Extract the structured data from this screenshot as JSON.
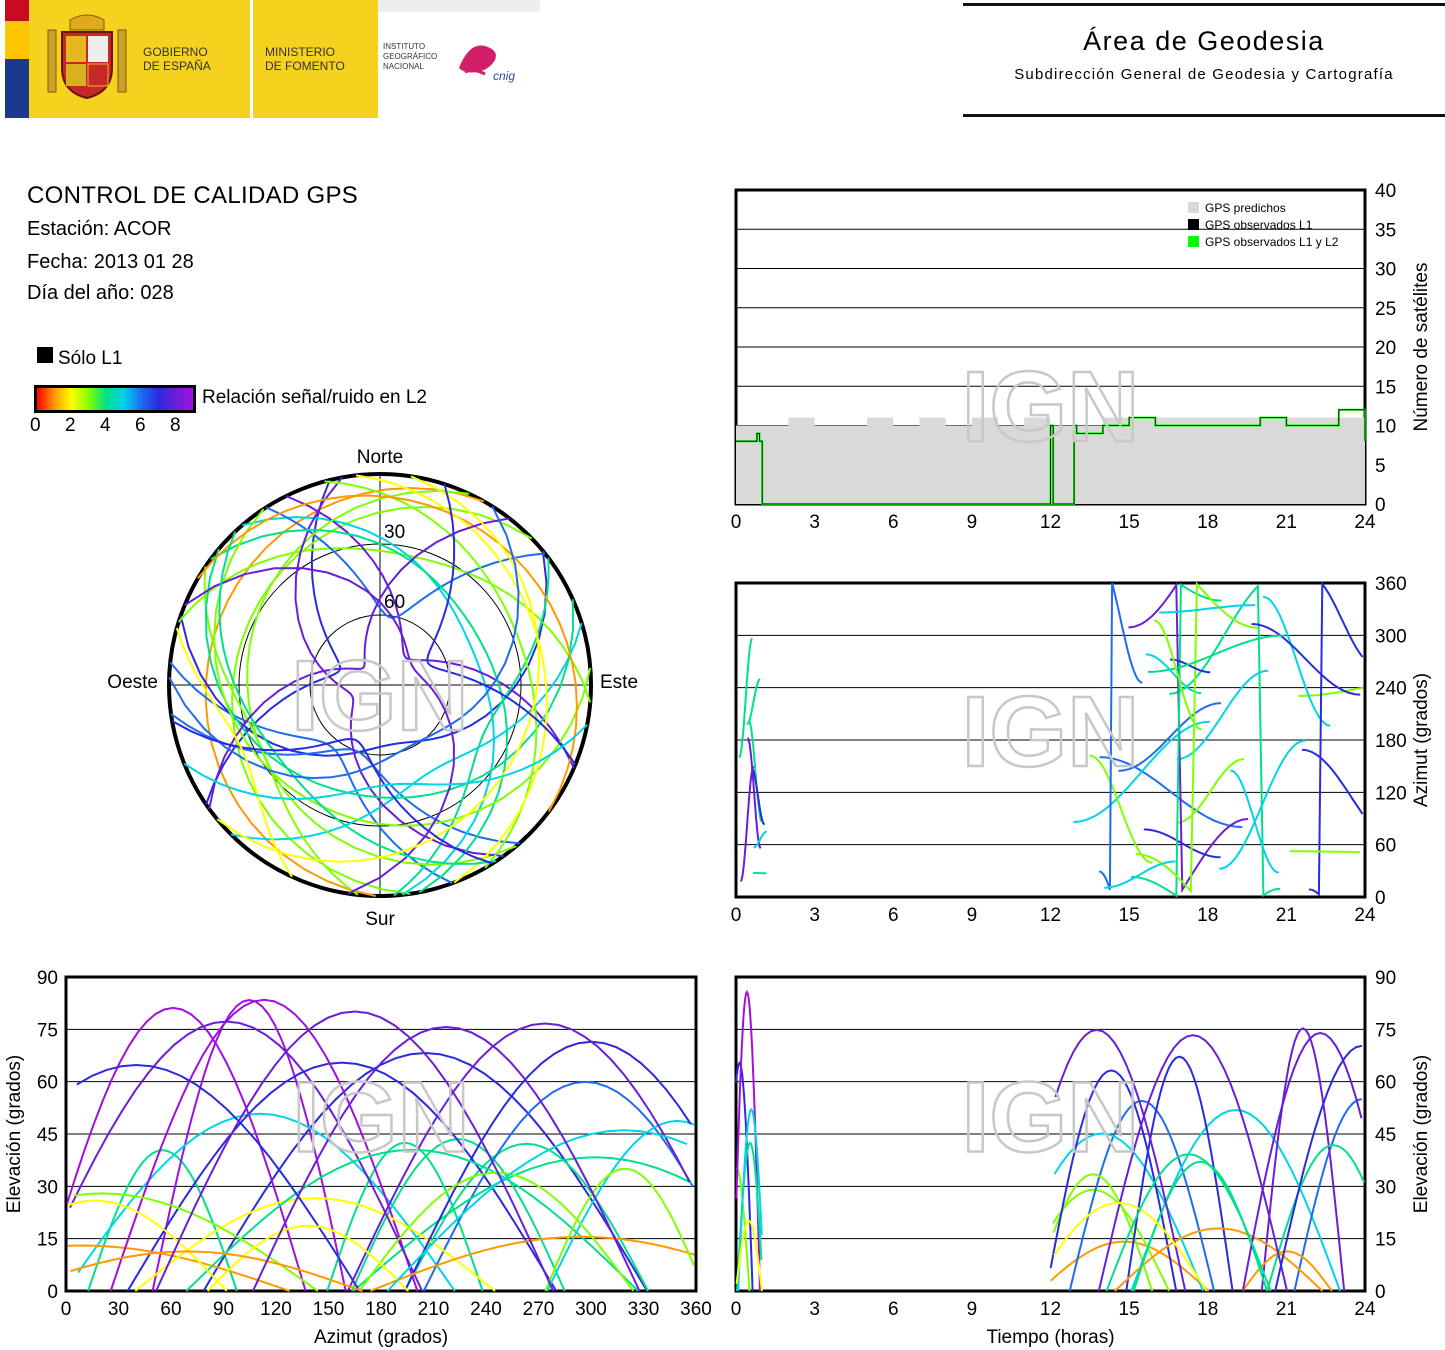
{
  "header": {
    "gov_line1": "GOBIERNO",
    "gov_line2": "DE ESPAÑA",
    "ministry_line1": "MINISTERIO",
    "ministry_line2": "DE FOMENTO",
    "ign_line1": "INSTITUTO",
    "ign_line2": "GEOGRÁFICO",
    "ign_line3": "NACIONAL",
    "cnig": "cnig",
    "area_title": "Área de Geodesia",
    "area_subtitle": "Subdirección General de Geodesia y Cartografía"
  },
  "info": {
    "title": "CONTROL DE CALIDAD GPS",
    "station": "Estación: ACOR",
    "date": "Fecha: 2013 01 28",
    "doy": "Día del año: 028"
  },
  "legend": {
    "only_l1": "Sólo L1",
    "snr_label": "Relación señal/ruido en L2",
    "snr_ticks": [
      "0",
      "2",
      "4",
      "6",
      "8"
    ]
  },
  "watermark": "IGN",
  "colors": {
    "predicted": "#d9d9d9",
    "observed_l1": "#000000",
    "observed_l1l2": "#00ff00",
    "snr_scale": [
      "#ff0000",
      "#ff9900",
      "#ffff00",
      "#7fff00",
      "#00e08a",
      "#00d4e8",
      "#1e6cf0",
      "#2a2ae0",
      "#6a1ed8",
      "#a010e0"
    ]
  },
  "chart_data": [
    {
      "type": "area",
      "name": "satellites",
      "xlabel": "",
      "ylabel": "Número de satélites",
      "xlim": [
        0,
        24
      ],
      "ylim": [
        0,
        40
      ],
      "xticks": [
        "0",
        "3",
        "6",
        "9",
        "12",
        "15",
        "18",
        "21",
        "24"
      ],
      "yticks": [
        "0",
        "5",
        "10",
        "15",
        "20",
        "25",
        "30",
        "35",
        "40"
      ],
      "legend": [
        "GPS predichos",
        "GPS observados L1",
        "GPS observados L1 y L2"
      ],
      "legend_position": "top-right",
      "grid": true,
      "predicted": {
        "x": [
          0,
          1,
          2,
          3,
          4,
          5,
          6,
          7,
          8,
          9,
          10,
          11,
          12,
          13,
          14,
          15,
          16,
          17,
          18,
          19,
          20,
          21,
          22,
          23,
          24
        ],
        "y": [
          10,
          10,
          11,
          10,
          10,
          11,
          10,
          11,
          10,
          11,
          10,
          11,
          10,
          10,
          11,
          11,
          11,
          11,
          11,
          11,
          11,
          11,
          11,
          11,
          9
        ]
      },
      "observed": {
        "x": [
          0,
          0.8,
          0.9,
          1,
          11.9,
          12,
          12.1,
          12.8,
          12.9,
          13,
          14,
          15,
          16,
          17,
          18,
          19,
          20,
          21,
          22,
          23,
          24
        ],
        "y": [
          8,
          9,
          8,
          0,
          0,
          10,
          0,
          0,
          10,
          9,
          10,
          11,
          10,
          10,
          10,
          10,
          11,
          10,
          10,
          12,
          8
        ]
      }
    },
    {
      "type": "scatter",
      "name": "skyplot",
      "labels": {
        "north": "Norte",
        "south": "Sur",
        "east": "Este",
        "west": "Oeste"
      },
      "rings": [
        "30",
        "60"
      ]
    },
    {
      "type": "line",
      "name": "azimuth",
      "xlabel": "",
      "ylabel": "Azimut (grados)",
      "xlim": [
        0,
        24
      ],
      "ylim": [
        0,
        360
      ],
      "xticks": [
        "0",
        "3",
        "6",
        "9",
        "12",
        "15",
        "18",
        "21",
        "24"
      ],
      "yticks": [
        "0",
        "60",
        "120",
        "180",
        "240",
        "300",
        "360"
      ]
    },
    {
      "type": "line",
      "name": "elevation_vs_azimuth",
      "xlabel": "Azimut (grados)",
      "ylabel": "Elevación (grados)",
      "xlim": [
        0,
        360
      ],
      "ylim": [
        0,
        90
      ],
      "xticks": [
        "0",
        "30",
        "60",
        "90",
        "120",
        "150",
        "180",
        "210",
        "240",
        "270",
        "300",
        "330",
        "360"
      ],
      "yticks": [
        "0",
        "15",
        "30",
        "45",
        "60",
        "75",
        "90"
      ]
    },
    {
      "type": "line",
      "name": "elevation_vs_time",
      "xlabel": "Tiempo (horas)",
      "ylabel": "Elevación (grados)",
      "xlim": [
        0,
        24
      ],
      "ylim": [
        0,
        90
      ],
      "xticks": [
        "0",
        "3",
        "6",
        "9",
        "12",
        "15",
        "18",
        "21",
        "24"
      ],
      "yticks": [
        "0",
        "15",
        "30",
        "45",
        "60",
        "75",
        "90"
      ]
    }
  ]
}
